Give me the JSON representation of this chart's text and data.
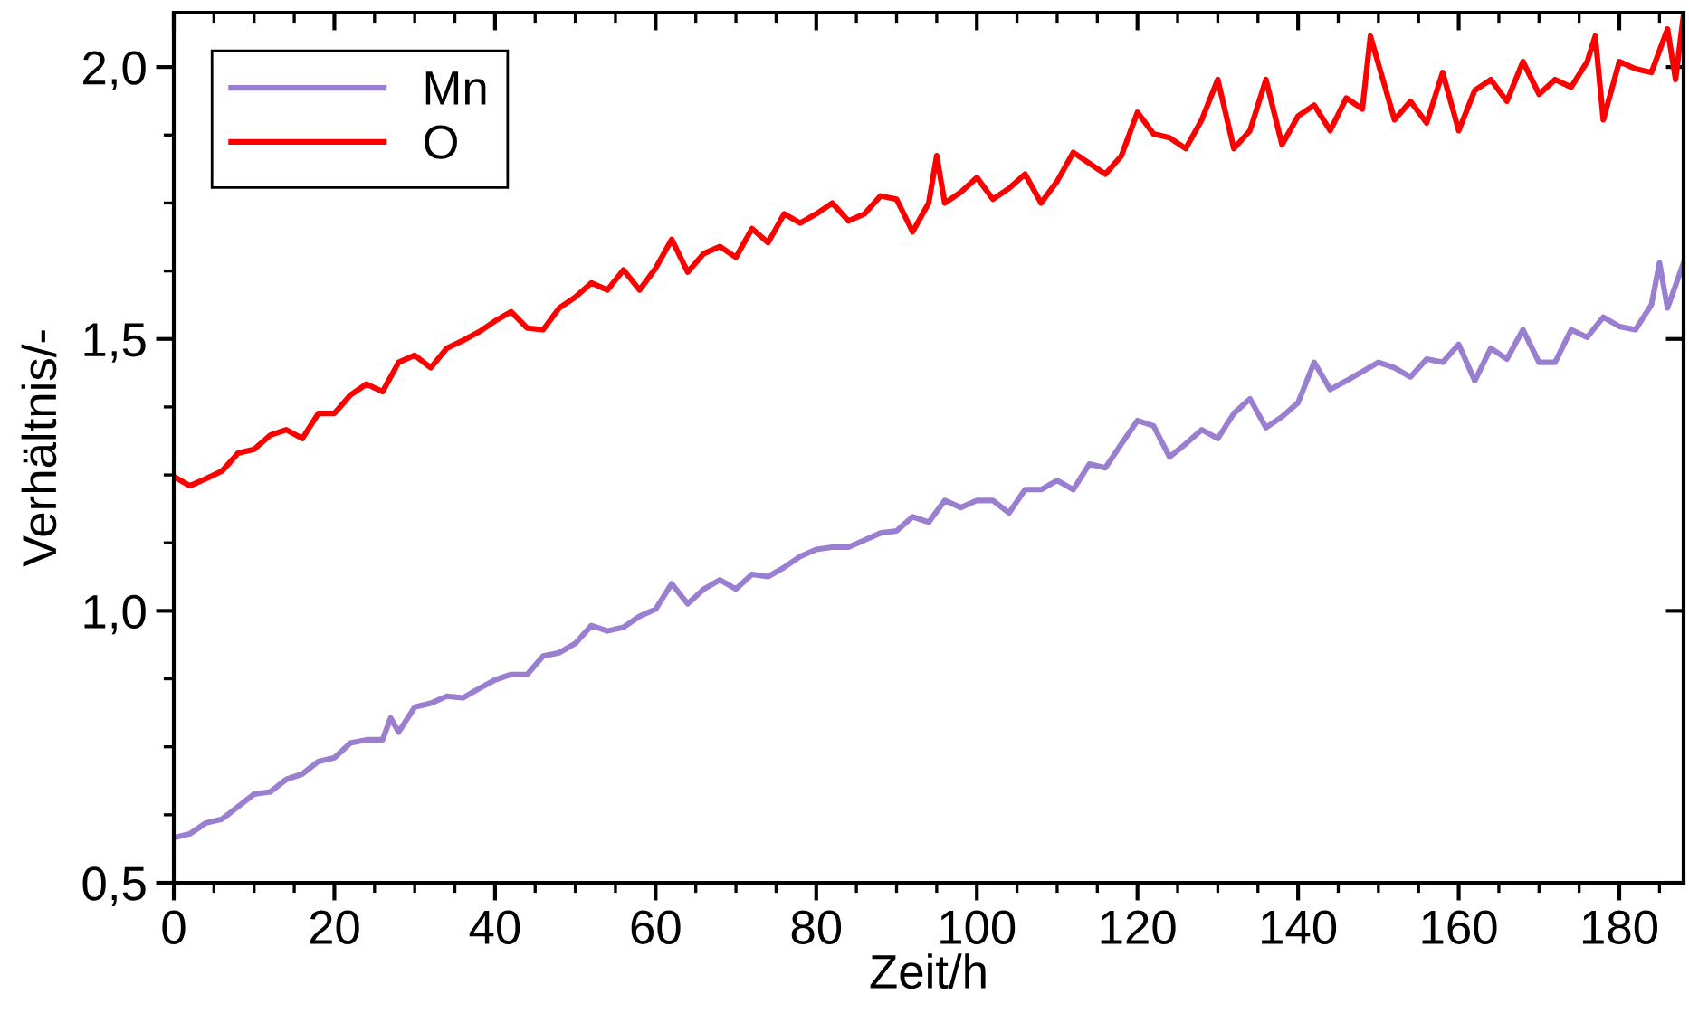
{
  "chart_data": {
    "type": "line",
    "xlabel": "Zeit/h",
    "ylabel": "Verhältnis/-",
    "xlim": [
      0,
      188
    ],
    "ylim": [
      0.5,
      2.1
    ],
    "xticks": [
      0,
      20,
      40,
      60,
      80,
      100,
      120,
      140,
      160,
      180
    ],
    "yticks": [
      {
        "value": 0.5,
        "label": "0,5"
      },
      {
        "value": 1.0,
        "label": "1,0"
      },
      {
        "value": 1.5,
        "label": "1,5"
      },
      {
        "value": 2.0,
        "label": "2,0"
      }
    ],
    "legend": "top left",
    "grid": false,
    "marker": "none",
    "line_style": "solid",
    "series": [
      {
        "name": "Mn",
        "color": "#9a7fd1",
        "x": [
          0,
          2,
          4,
          6,
          8,
          10,
          12,
          14,
          16,
          18,
          20,
          22,
          24,
          26,
          27,
          28,
          30,
          32,
          34,
          36,
          38,
          40,
          42,
          44,
          46,
          48,
          50,
          52,
          54,
          56,
          58,
          60,
          62,
          64,
          66,
          68,
          70,
          72,
          74,
          76,
          78,
          80,
          82,
          84,
          86,
          88,
          90,
          92,
          94,
          96,
          98,
          100,
          102,
          104,
          106,
          108,
          110,
          112,
          114,
          116,
          118,
          120,
          122,
          124,
          126,
          128,
          130,
          132,
          134,
          136,
          138,
          140,
          142,
          144,
          146,
          148,
          150,
          152,
          154,
          156,
          158,
          160,
          162,
          164,
          166,
          168,
          170,
          172,
          174,
          176,
          178,
          180,
          182,
          184,
          185,
          186,
          188
        ],
        "values": [
          0.583,
          0.59,
          0.61,
          0.617,
          0.64,
          0.663,
          0.667,
          0.69,
          0.7,
          0.723,
          0.73,
          0.757,
          0.763,
          0.763,
          0.803,
          0.777,
          0.823,
          0.83,
          0.843,
          0.84,
          0.857,
          0.873,
          0.883,
          0.883,
          0.917,
          0.923,
          0.94,
          0.973,
          0.963,
          0.97,
          0.99,
          1.003,
          1.05,
          1.013,
          1.04,
          1.057,
          1.04,
          1.067,
          1.063,
          1.08,
          1.1,
          1.113,
          1.117,
          1.117,
          1.13,
          1.143,
          1.147,
          1.173,
          1.163,
          1.203,
          1.19,
          1.203,
          1.203,
          1.18,
          1.223,
          1.223,
          1.24,
          1.223,
          1.27,
          1.263,
          1.307,
          1.35,
          1.34,
          1.283,
          1.307,
          1.333,
          1.317,
          1.363,
          1.39,
          1.337,
          1.357,
          1.383,
          1.457,
          1.407,
          1.423,
          1.44,
          1.457,
          1.447,
          1.43,
          1.463,
          1.457,
          1.49,
          1.423,
          1.483,
          1.463,
          1.517,
          1.457,
          1.457,
          1.517,
          1.503,
          1.54,
          1.523,
          1.517,
          1.563,
          1.64,
          1.557,
          1.64
        ]
      },
      {
        "name": "O",
        "color": "#ff0000",
        "x": [
          0,
          2,
          4,
          6,
          8,
          10,
          12,
          14,
          16,
          18,
          20,
          22,
          24,
          26,
          28,
          30,
          32,
          34,
          36,
          38,
          40,
          42,
          44,
          46,
          48,
          50,
          52,
          54,
          56,
          58,
          60,
          62,
          64,
          66,
          68,
          70,
          72,
          74,
          76,
          78,
          80,
          82,
          84,
          86,
          88,
          90,
          92,
          94,
          95,
          96,
          98,
          100,
          102,
          104,
          106,
          108,
          110,
          112,
          114,
          116,
          118,
          120,
          122,
          124,
          126,
          128,
          130,
          132,
          134,
          136,
          138,
          140,
          142,
          144,
          146,
          148,
          149,
          152,
          154,
          156,
          158,
          160,
          162,
          164,
          166,
          168,
          170,
          172,
          174,
          176,
          177,
          178,
          180,
          182,
          184,
          186,
          187,
          188
        ],
        "values": [
          1.247,
          1.23,
          1.243,
          1.257,
          1.29,
          1.297,
          1.323,
          1.333,
          1.317,
          1.363,
          1.363,
          1.397,
          1.417,
          1.403,
          1.457,
          1.47,
          1.447,
          1.483,
          1.497,
          1.513,
          1.533,
          1.55,
          1.52,
          1.517,
          1.557,
          1.577,
          1.603,
          1.59,
          1.627,
          1.59,
          1.63,
          1.683,
          1.623,
          1.657,
          1.67,
          1.65,
          1.703,
          1.677,
          1.73,
          1.713,
          1.73,
          1.75,
          1.717,
          1.73,
          1.763,
          1.757,
          1.697,
          1.75,
          1.837,
          1.75,
          1.77,
          1.797,
          1.757,
          1.777,
          1.803,
          1.75,
          1.79,
          1.843,
          1.823,
          1.803,
          1.837,
          1.917,
          1.877,
          1.87,
          1.85,
          1.903,
          1.977,
          1.85,
          1.883,
          1.977,
          1.857,
          1.91,
          1.93,
          1.883,
          1.943,
          1.923,
          2.057,
          1.903,
          1.937,
          1.897,
          1.99,
          1.883,
          1.957,
          1.977,
          1.937,
          2.01,
          1.95,
          1.977,
          1.963,
          2.01,
          2.057,
          1.903,
          2.01,
          1.997,
          1.99,
          2.07,
          1.977,
          2.097
        ]
      }
    ]
  }
}
